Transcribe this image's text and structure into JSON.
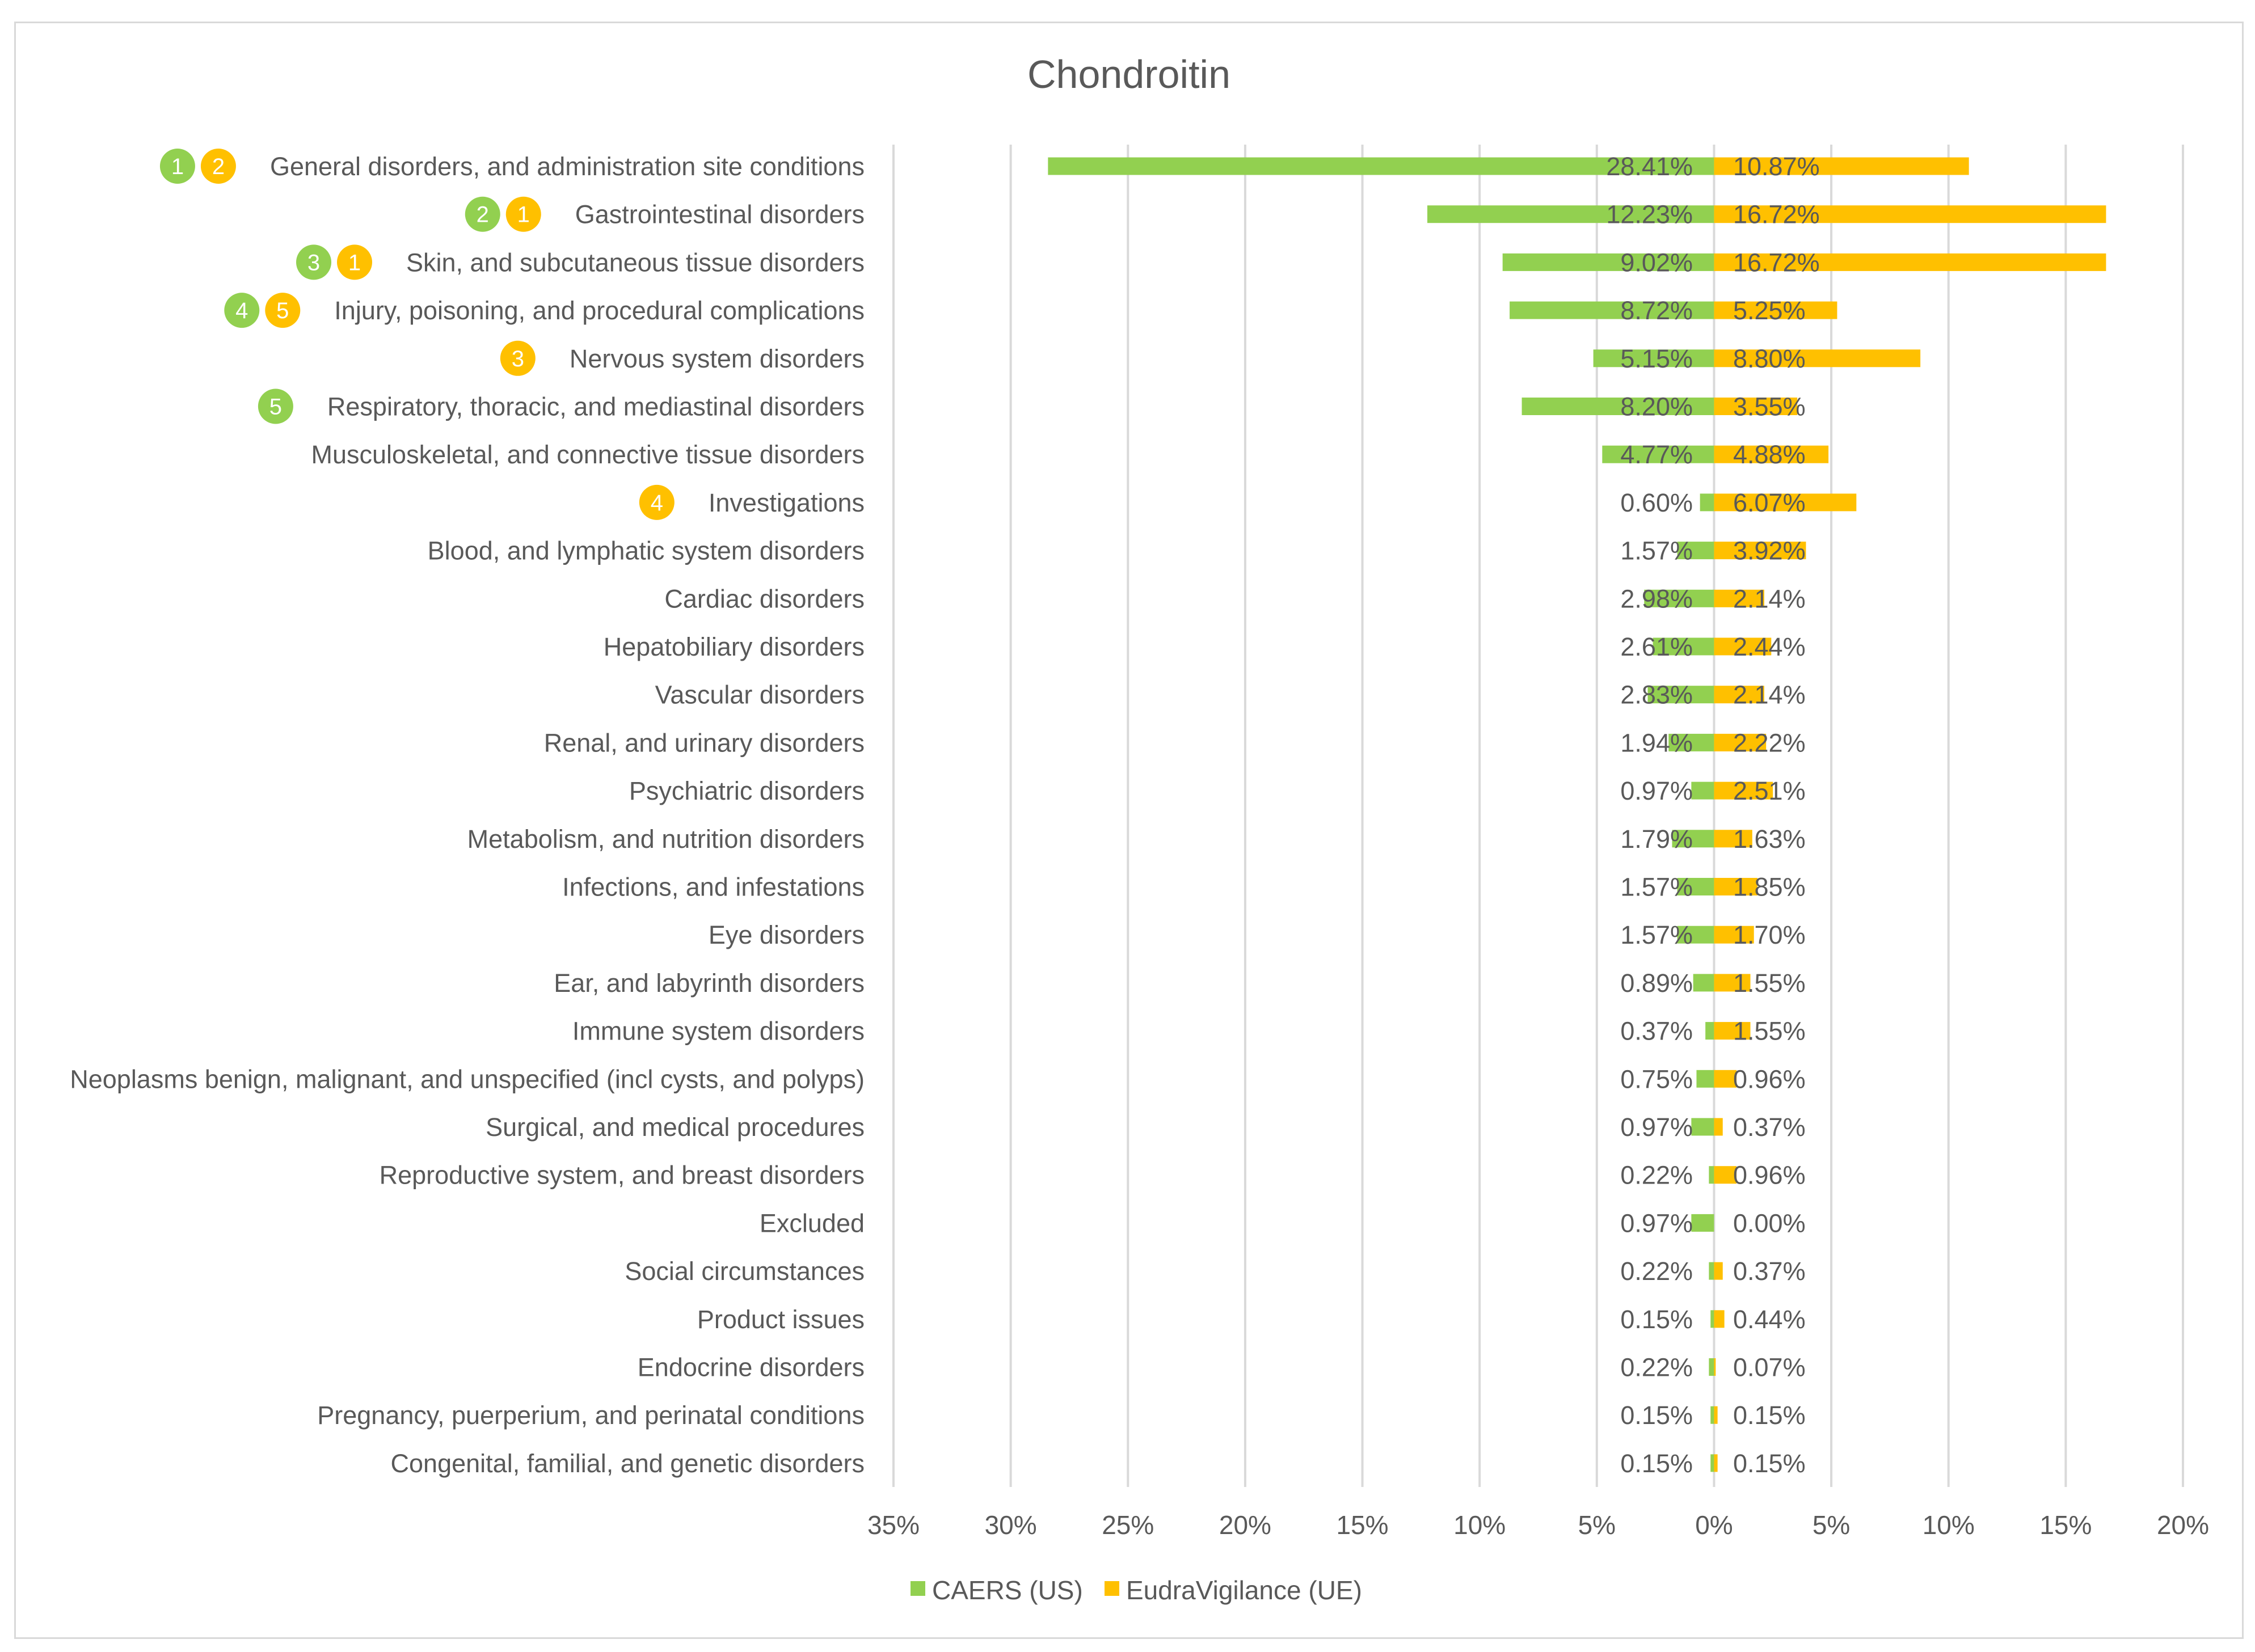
{
  "chart_data": {
    "type": "bar",
    "orientation": "horizontal-diverging",
    "title": "Chondroitin",
    "xlim": [
      -35,
      20
    ],
    "x_ticks": [
      -35,
      -30,
      -25,
      -20,
      -15,
      -10,
      -5,
      0,
      5,
      10,
      15,
      20
    ],
    "x_tick_labels": [
      "35%",
      "30%",
      "25%",
      "20%",
      "15%",
      "10%",
      "5%",
      "0%",
      "5%",
      "10%",
      "15%",
      "20%"
    ],
    "grid": true,
    "legend_position": "bottom",
    "categories": [
      "General disorders, and administration site conditions",
      "Gastrointestinal disorders",
      "Skin, and subcutaneous tissue disorders",
      "Injury, poisoning, and procedural complications",
      "Nervous system disorders",
      "Respiratory, thoracic, and mediastinal disorders",
      "Musculoskeletal, and connective tissue disorders",
      "Investigations",
      "Blood, and lymphatic system disorders",
      "Cardiac disorders",
      "Hepatobiliary disorders",
      "Vascular disorders",
      "Renal, and urinary disorders",
      "Psychiatric disorders",
      "Metabolism, and nutrition disorders",
      "Infections, and infestations",
      "Eye disorders",
      "Ear, and labyrinth disorders",
      "Immune system disorders",
      "Neoplasms benign, malignant, and unspecified (incl cysts, and polyps)",
      "Surgical, and medical procedures",
      "Reproductive system, and breast disorders",
      "Excluded",
      "Social circumstances",
      "Product issues",
      "Endocrine disorders",
      "Pregnancy, puerperium, and perinatal conditions",
      "Congenital, familial, and genetic disorders"
    ],
    "series": [
      {
        "name": "CAERS (US)",
        "color": "#92d050",
        "direction": "left",
        "values": [
          28.41,
          12.23,
          9.02,
          8.72,
          5.15,
          8.2,
          4.77,
          0.6,
          1.57,
          2.98,
          2.61,
          2.83,
          1.94,
          0.97,
          1.79,
          1.57,
          1.57,
          0.89,
          0.37,
          0.75,
          0.97,
          0.22,
          0.97,
          0.22,
          0.15,
          0.22,
          0.15,
          0.15
        ],
        "labels": [
          "28.41%",
          "12.23%",
          "9.02%",
          "8.72%",
          "5.15%",
          "8.20%",
          "4.77%",
          "0.60%",
          "1.57%",
          "2.98%",
          "2.61%",
          "2.83%",
          "1.94%",
          "0.97%",
          "1.79%",
          "1.57%",
          "1.57%",
          "0.89%",
          "0.37%",
          "0.75%",
          "0.97%",
          "0.22%",
          "0.97%",
          "0.22%",
          "0.15%",
          "0.22%",
          "0.15%",
          "0.15%"
        ]
      },
      {
        "name": "EudraVigilance (UE)",
        "color": "#ffc000",
        "direction": "right",
        "values": [
          10.87,
          16.72,
          16.72,
          5.25,
          8.8,
          3.55,
          4.88,
          6.07,
          3.92,
          2.14,
          2.44,
          2.14,
          2.22,
          2.51,
          1.63,
          1.85,
          1.7,
          1.55,
          1.55,
          0.96,
          0.37,
          0.96,
          0.0,
          0.37,
          0.44,
          0.07,
          0.15,
          0.15
        ],
        "labels": [
          "10.87%",
          "16.72%",
          "16.72%",
          "5.25%",
          "8.80%",
          "3.55%",
          "4.88%",
          "6.07%",
          "3.92%",
          "2.14%",
          "2.44%",
          "2.14%",
          "2.22%",
          "2.51%",
          "1.63%",
          "1.85%",
          "1.70%",
          "1.55%",
          "1.55%",
          "0.96%",
          "0.37%",
          "0.96%",
          "0.00%",
          "0.37%",
          "0.44%",
          "0.07%",
          "0.15%",
          "0.15%"
        ]
      }
    ],
    "rank_badges": [
      {
        "row": 0,
        "badges": [
          {
            "series": 0,
            "rank": "1"
          },
          {
            "series": 1,
            "rank": "2"
          }
        ]
      },
      {
        "row": 1,
        "badges": [
          {
            "series": 0,
            "rank": "2"
          },
          {
            "series": 1,
            "rank": "1"
          }
        ]
      },
      {
        "row": 2,
        "badges": [
          {
            "series": 0,
            "rank": "3"
          },
          {
            "series": 1,
            "rank": "1"
          }
        ]
      },
      {
        "row": 3,
        "badges": [
          {
            "series": 0,
            "rank": "4"
          },
          {
            "series": 1,
            "rank": "5"
          }
        ]
      },
      {
        "row": 4,
        "badges": [
          {
            "series": 1,
            "rank": "3"
          }
        ]
      },
      {
        "row": 5,
        "badges": [
          {
            "series": 0,
            "rank": "5"
          }
        ]
      },
      {
        "row": 7,
        "badges": [
          {
            "series": 1,
            "rank": "4"
          }
        ]
      }
    ]
  }
}
